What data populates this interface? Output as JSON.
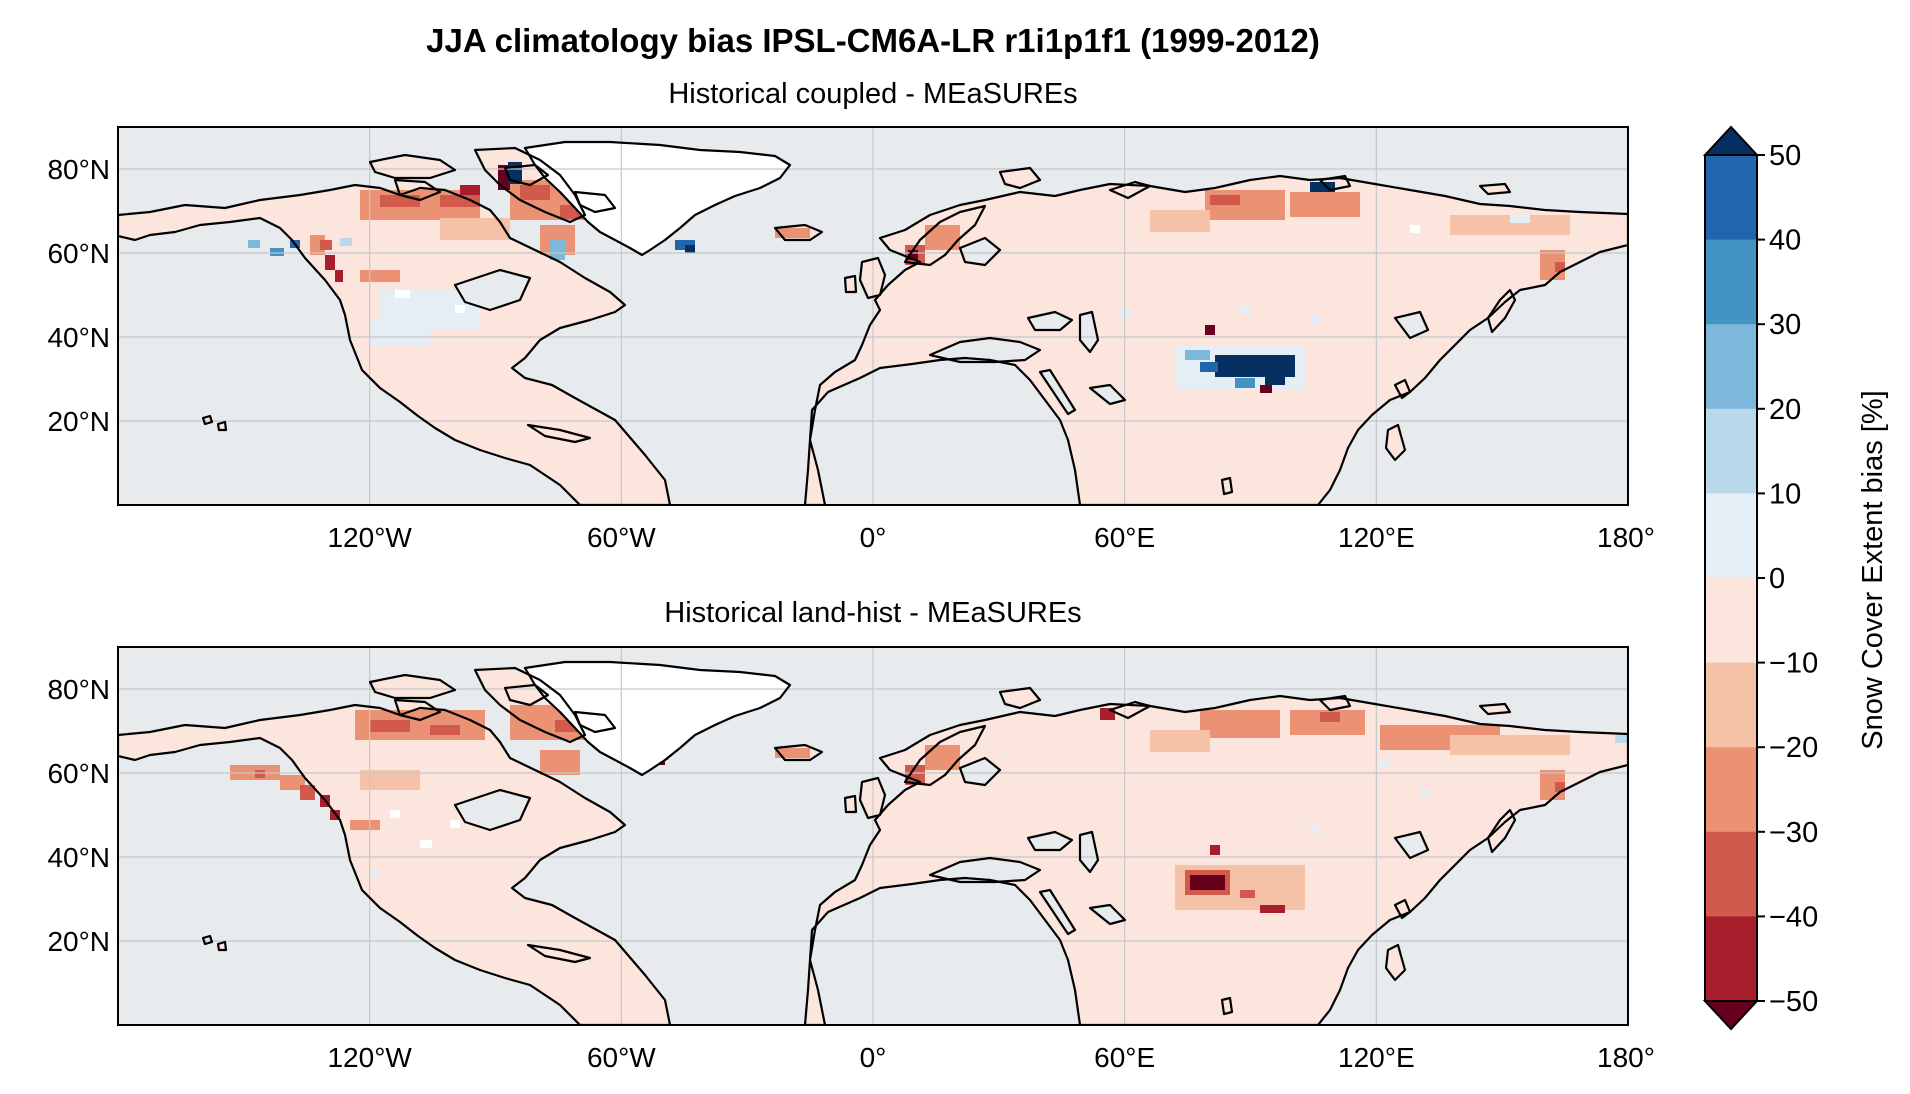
{
  "figure": {
    "title": "JJA climatology bias IPSL-CM6A-LR r1i1p1f1 (1999-2012)"
  },
  "panels": [
    {
      "subtitle": "Historical coupled - MEaSUREs"
    },
    {
      "subtitle": "Historical land-hist - MEaSUREs"
    }
  ],
  "map_axes": {
    "lon_ticks": [
      "120°W",
      "60°W",
      "0°",
      "60°E",
      "120°E",
      "180°"
    ],
    "lat_ticks": [
      "80°N",
      "60°N",
      "40°N",
      "20°N"
    ],
    "lon_range": [
      -180,
      180
    ],
    "lat_range": [
      0,
      90
    ],
    "grid": true
  },
  "colorbar": {
    "label": "Snow Cover Extent bias [%]",
    "ticks": [
      "50",
      "40",
      "30",
      "20",
      "10",
      "0",
      "−10",
      "−20",
      "−30",
      "−40",
      "−50"
    ],
    "levels_top_to_bottom": [
      {
        "range": [
          40,
          50
        ],
        "color": "#2166ac"
      },
      {
        "range": [
          30,
          40
        ],
        "color": "#4393c3"
      },
      {
        "range": [
          20,
          30
        ],
        "color": "#7db8da"
      },
      {
        "range": [
          10,
          20
        ],
        "color": "#b9d9ea"
      },
      {
        "range": [
          0,
          10
        ],
        "color": "#e4eef4"
      },
      {
        "range": [
          -10,
          0
        ],
        "color": "#fbe5dc"
      },
      {
        "range": [
          -20,
          -10
        ],
        "color": "#f6c2a7"
      },
      {
        "range": [
          -30,
          -20
        ],
        "color": "#ea9273"
      },
      {
        "range": [
          -40,
          -30
        ],
        "color": "#d15a4c"
      },
      {
        "range": [
          -50,
          -40
        ],
        "color": "#a81e2d"
      }
    ],
    "over_color": "#053061",
    "under_color": "#67001f"
  },
  "colors": {
    "ocean": "#e7ebee",
    "land_bias_small_negative": "#fbe5dc",
    "ice_sheet": "#ffffff",
    "gridline": "#c3c8cc"
  }
}
